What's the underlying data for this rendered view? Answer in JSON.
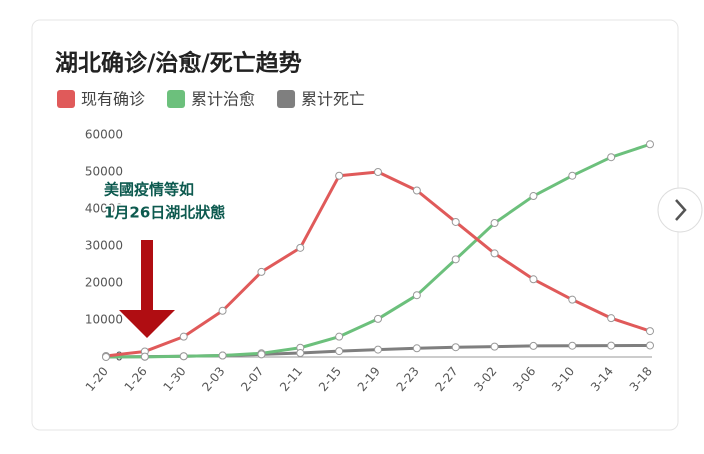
{
  "chart_data": {
    "type": "line",
    "title": "湖北确诊/治愈/死亡趋势",
    "annotation": [
      "美國疫情等如",
      "1月26日湖北狀態"
    ],
    "categories": [
      "1-20",
      "1-26",
      "1-30",
      "2-03",
      "2-07",
      "2-11",
      "2-15",
      "2-19",
      "2-23",
      "2-27",
      "3-02",
      "3-06",
      "3-10",
      "3-14",
      "3-18"
    ],
    "series": [
      {
        "name": "现有确诊",
        "color": "#e05a5a",
        "values": [
          270,
          1500,
          5500,
          12500,
          23000,
          29500,
          49000,
          50000,
          45000,
          36500,
          28000,
          21000,
          15500,
          10500,
          7000
        ]
      },
      {
        "name": "累计治愈",
        "color": "#6cc07c",
        "values": [
          25,
          50,
          200,
          400,
          1000,
          2500,
          5500,
          10300,
          16700,
          26400,
          36200,
          43500,
          49000,
          54000,
          57500
        ]
      },
      {
        "name": "累计死亡",
        "color": "#7f7f7f",
        "values": [
          6,
          100,
          200,
          400,
          700,
          1070,
          1600,
          2000,
          2350,
          2640,
          2800,
          2990,
          3050,
          3080,
          3120
        ]
      }
    ],
    "ylim": [
      0,
      60000
    ],
    "yticks": [
      0,
      10000,
      20000,
      30000,
      40000,
      50000,
      60000
    ],
    "grid": false
  }
}
